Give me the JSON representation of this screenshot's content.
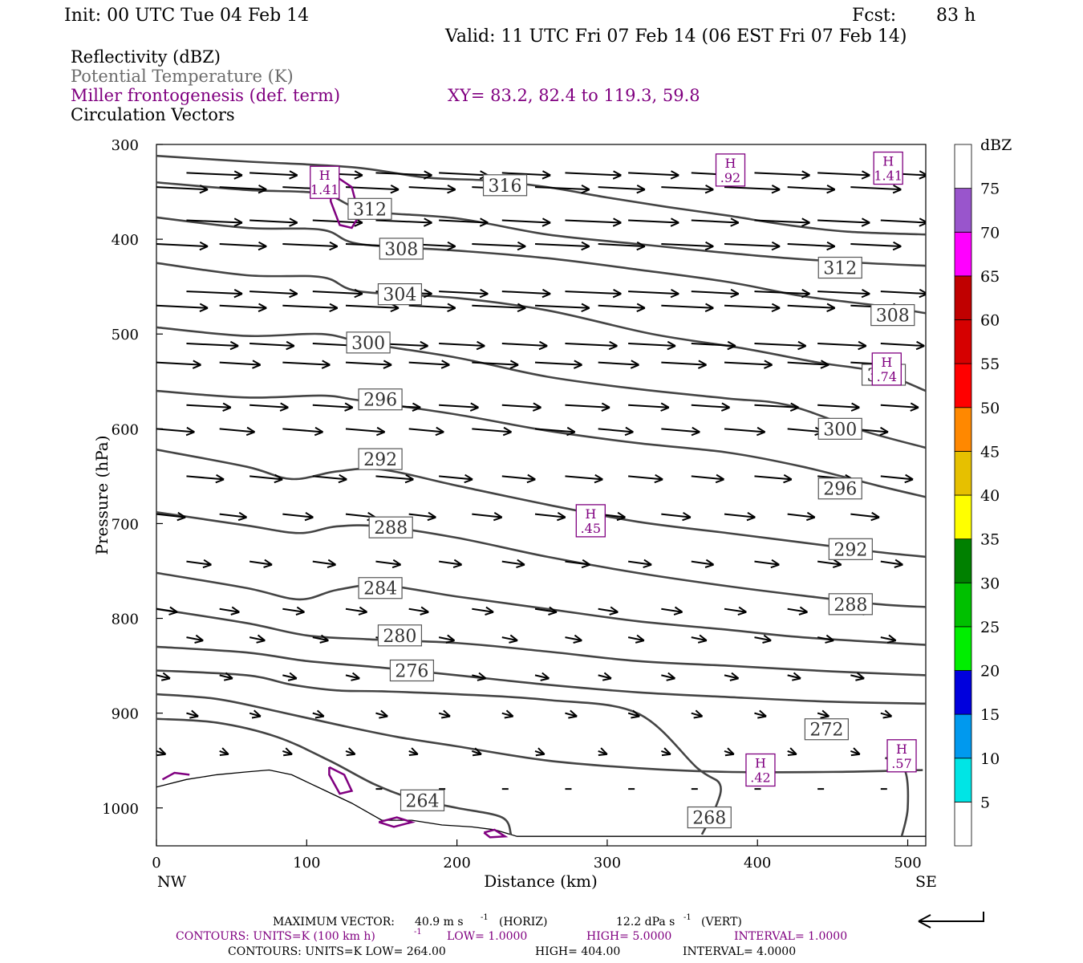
{
  "header": {
    "init": "Init: 00 UTC Tue 04 Feb 14",
    "fcst_label": "Fcst:",
    "fcst_value": "83 h",
    "valid": "Valid: 11 UTC Fri 07 Feb 14 (06 EST Fri 07 Feb 14)"
  },
  "fields": {
    "reflectivity": "Reflectivity (dBZ)",
    "theta": "Potential Temperature (K)",
    "miller": "Miller frontogenesis (def. term)",
    "xy": "XY=  83.2, 82.4 to 119.3, 59.8",
    "vectors": "Circulation Vectors"
  },
  "colors": {
    "purple": "#800080",
    "theta_line": "#444444",
    "terrain": "#000000",
    "vector": "#000000"
  },
  "chart_data": {
    "type": "cross-section",
    "xlabel": "Distance (km)",
    "ylabel": "Pressure (hPa)",
    "xlim": [
      0,
      512
    ],
    "ylim": [
      1040,
      300
    ],
    "xticks": [
      0,
      100,
      200,
      300,
      400,
      500
    ],
    "yticks": [
      300,
      400,
      500,
      600,
      700,
      800,
      900,
      1000
    ],
    "x_end_left": "NW",
    "x_end_right": "SE",
    "theta_contours": [
      {
        "value": 316,
        "label": "316",
        "label_at": [
          232,
          343
        ],
        "points": [
          [
            0,
            312
          ],
          [
            60,
            318
          ],
          [
            130,
            324
          ],
          [
            180,
            335
          ],
          [
            220,
            338
          ],
          [
            260,
            345
          ],
          [
            300,
            356
          ],
          [
            340,
            366
          ],
          [
            380,
            375
          ],
          [
            420,
            385
          ],
          [
            460,
            392
          ],
          [
            512,
            395
          ]
        ]
      },
      {
        "value": 312,
        "label": "312",
        "label_at": [
          142,
          368
        ],
        "points": [
          [
            0,
            340
          ],
          [
            60,
            348
          ],
          [
            110,
            352
          ],
          [
            140,
            370
          ],
          [
            200,
            378
          ],
          [
            260,
            395
          ],
          [
            320,
            405
          ],
          [
            370,
            413
          ],
          [
            420,
            420
          ],
          [
            470,
            425
          ],
          [
            512,
            428
          ]
        ]
      },
      {
        "value": 308,
        "label": "308",
        "label_at": [
          163,
          410
        ],
        "points": [
          [
            0,
            377
          ],
          [
            60,
            388
          ],
          [
            110,
            390
          ],
          [
            135,
            405
          ],
          [
            200,
            412
          ],
          [
            260,
            420
          ],
          [
            320,
            432
          ],
          [
            380,
            445
          ],
          [
            430,
            460
          ],
          [
            480,
            470
          ],
          [
            512,
            478
          ]
        ]
      },
      {
        "value": 312,
        "label": "312",
        "label_at": [
          455,
          430
        ],
        "points": []
      },
      {
        "value": 304,
        "label": "304",
        "label_at": [
          162,
          458
        ],
        "points": [
          [
            0,
            425
          ],
          [
            60,
            438
          ],
          [
            110,
            440
          ],
          [
            135,
            455
          ],
          [
            200,
            462
          ],
          [
            260,
            475
          ],
          [
            330,
            500
          ],
          [
            390,
            515
          ],
          [
            440,
            530
          ],
          [
            480,
            540
          ],
          [
            512,
            560
          ]
        ]
      },
      {
        "value": 308,
        "label": "308",
        "label_at": [
          490,
          480
        ],
        "points": []
      },
      {
        "value": 300,
        "label": "300",
        "label_at": [
          141,
          509
        ],
        "points": [
          [
            0,
            493
          ],
          [
            60,
            502
          ],
          [
            110,
            500
          ],
          [
            140,
            510
          ],
          [
            200,
            525
          ],
          [
            260,
            545
          ],
          [
            320,
            558
          ],
          [
            380,
            568
          ],
          [
            420,
            575
          ],
          [
            470,
            602
          ],
          [
            512,
            620
          ]
        ]
      },
      {
        "value": 304,
        "label": "304",
        "label_at": [
          484,
          543
        ],
        "points": []
      },
      {
        "value": 296,
        "label": "296",
        "label_at": [
          149,
          569
        ],
        "points": [
          [
            0,
            560
          ],
          [
            60,
            567
          ],
          [
            110,
            565
          ],
          [
            135,
            570
          ],
          [
            200,
            585
          ],
          [
            260,
            602
          ],
          [
            320,
            615
          ],
          [
            380,
            625
          ],
          [
            430,
            640
          ],
          [
            480,
            660
          ],
          [
            512,
            672
          ]
        ]
      },
      {
        "value": 300,
        "label": "300",
        "label_at": [
          455,
          600
        ],
        "points": []
      },
      {
        "value": 292,
        "label": "292",
        "label_at": [
          149,
          632
        ],
        "points": [
          [
            0,
            622
          ],
          [
            60,
            640
          ],
          [
            90,
            653
          ],
          [
            120,
            645
          ],
          [
            150,
            643
          ],
          [
            200,
            660
          ],
          [
            260,
            680
          ],
          [
            320,
            698
          ],
          [
            380,
            710
          ],
          [
            430,
            720
          ],
          [
            480,
            730
          ],
          [
            512,
            735
          ]
        ]
      },
      {
        "value": 296,
        "label": "296",
        "label_at": [
          455,
          663
        ],
        "points": []
      },
      {
        "value": 288,
        "label": "288",
        "label_at": [
          156,
          704
        ],
        "points": [
          [
            0,
            688
          ],
          [
            60,
            702
          ],
          [
            95,
            710
          ],
          [
            120,
            703
          ],
          [
            150,
            703
          ],
          [
            200,
            715
          ],
          [
            260,
            735
          ],
          [
            320,
            752
          ],
          [
            380,
            766
          ],
          [
            430,
            776
          ],
          [
            480,
            785
          ],
          [
            512,
            788
          ]
        ]
      },
      {
        "value": 292,
        "label": "292",
        "label_at": [
          462,
          727
        ],
        "points": []
      },
      {
        "value": 284,
        "label": "284",
        "label_at": [
          149,
          768
        ],
        "points": [
          [
            0,
            752
          ],
          [
            60,
            768
          ],
          [
            95,
            780
          ],
          [
            120,
            770
          ],
          [
            150,
            765
          ],
          [
            200,
            777
          ],
          [
            260,
            790
          ],
          [
            320,
            803
          ],
          [
            380,
            812
          ],
          [
            430,
            820
          ],
          [
            512,
            828
          ]
        ]
      },
      {
        "value": 288,
        "label": "288",
        "label_at": [
          462,
          785
        ],
        "points": []
      },
      {
        "value": 280,
        "label": "280",
        "label_at": [
          162,
          818
        ],
        "points": [
          [
            0,
            790
          ],
          [
            60,
            805
          ],
          [
            100,
            818
          ],
          [
            140,
            822
          ],
          [
            200,
            826
          ],
          [
            260,
            835
          ],
          [
            320,
            845
          ],
          [
            380,
            850
          ],
          [
            450,
            856
          ],
          [
            512,
            860
          ]
        ]
      },
      {
        "value": 276,
        "label": "276",
        "label_at": [
          170,
          855
        ],
        "points": [
          [
            0,
            830
          ],
          [
            60,
            836
          ],
          [
            100,
            845
          ],
          [
            150,
            852
          ],
          [
            200,
            860
          ],
          [
            260,
            870
          ],
          [
            320,
            878
          ],
          [
            380,
            883
          ],
          [
            450,
            888
          ],
          [
            512,
            890
          ]
        ]
      },
      {
        "value": 272,
        "label": "272",
        "label_at": [
          446,
          917
        ],
        "points": [
          [
            0,
            880
          ],
          [
            40,
            885
          ],
          [
            80,
            898
          ],
          [
            120,
            912
          ],
          [
            160,
            925
          ],
          [
            200,
            935
          ],
          [
            260,
            950
          ],
          [
            320,
            958
          ],
          [
            380,
            962
          ],
          [
            450,
            962
          ],
          [
            510,
            960
          ]
        ]
      },
      {
        "value": 264,
        "label": "264",
        "label_at": [
          177,
          992
        ],
        "points": [
          [
            0,
            906
          ],
          [
            40,
            910
          ],
          [
            80,
            925
          ],
          [
            115,
            950
          ],
          [
            145,
            975
          ],
          [
            170,
            990
          ],
          [
            200,
            1000
          ],
          [
            230,
            1010
          ],
          [
            236,
            1028
          ]
        ]
      },
      {
        "value": 268,
        "label": "268",
        "label_at": [
          368,
          1010
        ],
        "points": [
          [
            0,
            855
          ],
          [
            60,
            860
          ],
          [
            90,
            870
          ],
          [
            120,
            876
          ],
          [
            150,
            877
          ],
          [
            200,
            880
          ],
          [
            260,
            886
          ],
          [
            320,
            900
          ],
          [
            360,
            958
          ],
          [
            375,
            975
          ],
          [
            372,
            1000
          ],
          [
            363,
            1028
          ]
        ]
      },
      {
        "value": 272,
        "label": "",
        "label_at": null,
        "points": [
          [
            485,
            947
          ],
          [
            498,
            960
          ],
          [
            500,
            1000
          ],
          [
            496,
            1030
          ]
        ]
      }
    ],
    "frontogenesis_highs": [
      {
        "label": "H",
        "value": "1.41",
        "at": [
          112,
          340
        ]
      },
      {
        "label": "H",
        "value": ".92",
        "at": [
          382,
          327
        ]
      },
      {
        "label": "H",
        "value": "1.41",
        "at": [
          487,
          325
        ]
      },
      {
        "label": "H",
        "value": ".45",
        "at": [
          289,
          697
        ]
      },
      {
        "label": "H",
        "value": ".74",
        "at": [
          486,
          537
        ]
      },
      {
        "label": "H",
        "value": ".42",
        "at": [
          402,
          960
        ]
      },
      {
        "label": "H",
        "value": ".57",
        "at": [
          496,
          945
        ]
      }
    ],
    "vectors_hint": "horizontal eastward circulation vectors, weakening toward the surface",
    "terrain_top_km_hpa": [
      [
        0,
        978
      ],
      [
        20,
        970
      ],
      [
        40,
        965
      ],
      [
        60,
        962
      ],
      [
        75,
        960
      ],
      [
        90,
        965
      ],
      [
        110,
        980
      ],
      [
        130,
        995
      ],
      [
        150,
        1013
      ],
      [
        170,
        1013
      ],
      [
        190,
        1018
      ],
      [
        210,
        1020
      ],
      [
        225,
        1023
      ],
      [
        240,
        1030
      ],
      [
        512,
        1030
      ]
    ]
  },
  "colorbar": {
    "title": "dBZ",
    "colors": [
      "#ffffff",
      "#00e5e5",
      "#0099ee",
      "#0000dd",
      "#00ee00",
      "#00c000",
      "#008000",
      "#ffff00",
      "#e6c000",
      "#ff8800",
      "#ff0000",
      "#d60000",
      "#c00000",
      "#ff00ff",
      "#9955cc",
      "#ffffff"
    ],
    "labels": [
      "5",
      "10",
      "15",
      "20",
      "25",
      "30",
      "35",
      "40",
      "45",
      "50",
      "55",
      "60",
      "65",
      "70",
      "75"
    ]
  },
  "footer": {
    "max_vector_label": "MAXIMUM VECTOR:",
    "max_vector_horiz": "40.9 m s",
    "max_vector_horiz_unit": "(HORIZ)",
    "max_vector_vert": "12.2 dPa s",
    "max_vector_vert_unit": "(VERT)",
    "contours_purple_a": "CONTOURS:  UNITS=K (100 km h)",
    "contours_purple_b": "LOW=  1.0000",
    "contours_purple_c": "HIGH=  5.0000",
    "contours_purple_d": "INTERVAL=  1.0000",
    "contours_black_a": "CONTOURS:  UNITS=K  LOW=  264.00",
    "contours_black_b": "HIGH=  404.00",
    "contours_black_c": "INTERVAL=  4.0000"
  }
}
